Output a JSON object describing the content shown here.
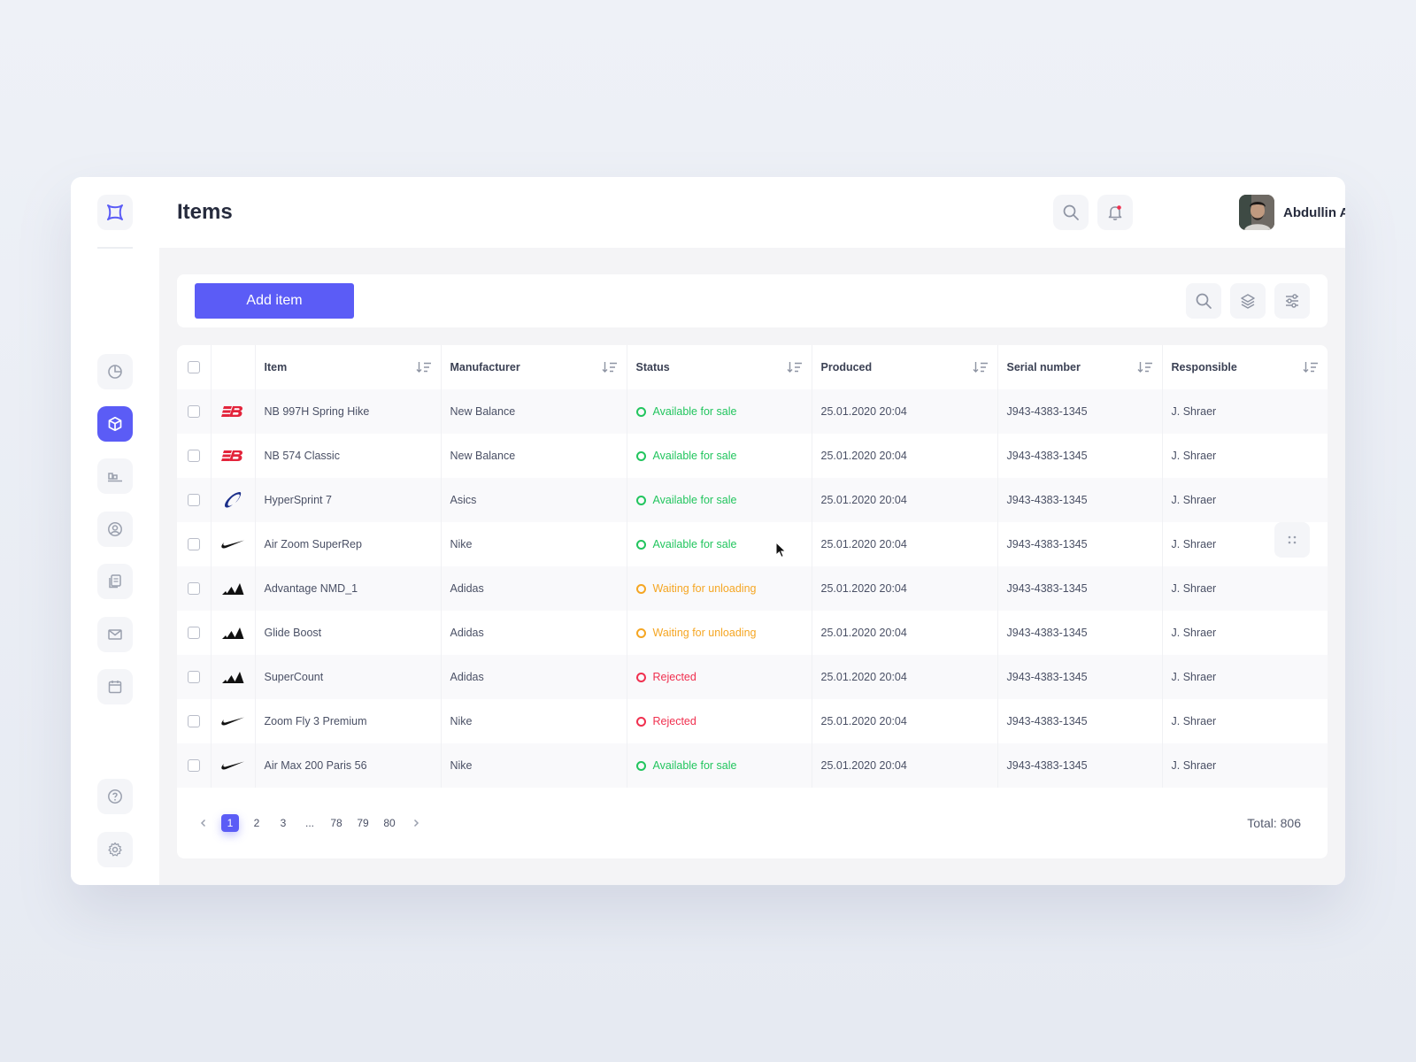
{
  "header": {
    "title": "Items",
    "user_name": "Abdullin A.A."
  },
  "toolbar": {
    "add_label": "Add item"
  },
  "table": {
    "columns": [
      "Item",
      "Manufacturer",
      "Status",
      "Produced",
      "Serial number",
      "Responsible"
    ],
    "rows": [
      {
        "item": "NB 997H Spring Hike",
        "manufacturer": "New Balance",
        "status": "Available for sale",
        "produced": "25.01.2020 20:04",
        "serial": "J943-4383-1345",
        "responsible": "J. Shraer"
      },
      {
        "item": "NB 574 Classic",
        "manufacturer": "New Balance",
        "status": "Available for sale",
        "produced": "25.01.2020 20:04",
        "serial": "J943-4383-1345",
        "responsible": "J. Shraer"
      },
      {
        "item": "HyperSprint 7",
        "manufacturer": "Asics",
        "status": "Available for sale",
        "produced": "25.01.2020 20:04",
        "serial": "J943-4383-1345",
        "responsible": "J. Shraer"
      },
      {
        "item": "Air Zoom SuperRep",
        "manufacturer": "Nike",
        "status": "Available for sale",
        "produced": "25.01.2020 20:04",
        "serial": "J943-4383-1345",
        "responsible": "J. Shraer"
      },
      {
        "item": "Advantage NMD_1",
        "manufacturer": "Adidas",
        "status": "Waiting for unloading",
        "produced": "25.01.2020 20:04",
        "serial": "J943-4383-1345",
        "responsible": "J. Shraer"
      },
      {
        "item": "Glide Boost",
        "manufacturer": "Adidas",
        "status": "Waiting for unloading",
        "produced": "25.01.2020 20:04",
        "serial": "J943-4383-1345",
        "responsible": "J. Shraer"
      },
      {
        "item": "SuperCount",
        "manufacturer": "Adidas",
        "status": "Rejected",
        "produced": "25.01.2020 20:04",
        "serial": "J943-4383-1345",
        "responsible": "J. Shraer"
      },
      {
        "item": "Zoom Fly 3 Premium",
        "manufacturer": "Nike",
        "status": "Rejected",
        "produced": "25.01.2020 20:04",
        "serial": "J943-4383-1345",
        "responsible": "J. Shraer"
      },
      {
        "item": "Air Max 200 Paris 56",
        "manufacturer": "Nike",
        "status": "Available for sale",
        "produced": "25.01.2020 20:04",
        "serial": "J943-4383-1345",
        "responsible": "J. Shraer"
      }
    ]
  },
  "status_colors": {
    "Available for sale": "#22c55e",
    "Waiting for unloading": "#f5a623",
    "Rejected": "#f0304f"
  },
  "brand_icons": {
    "New Balance": "new-balance-logo-icon",
    "Asics": "asics-logo-icon",
    "Nike": "nike-swoosh-icon",
    "Adidas": "adidas-logo-icon"
  },
  "pagination": {
    "pages": [
      "1",
      "2",
      "3",
      "...",
      "78",
      "79",
      "80"
    ],
    "current": "1",
    "total_label": "Total: 806"
  },
  "colors": {
    "accent": "#5b5cf6"
  }
}
